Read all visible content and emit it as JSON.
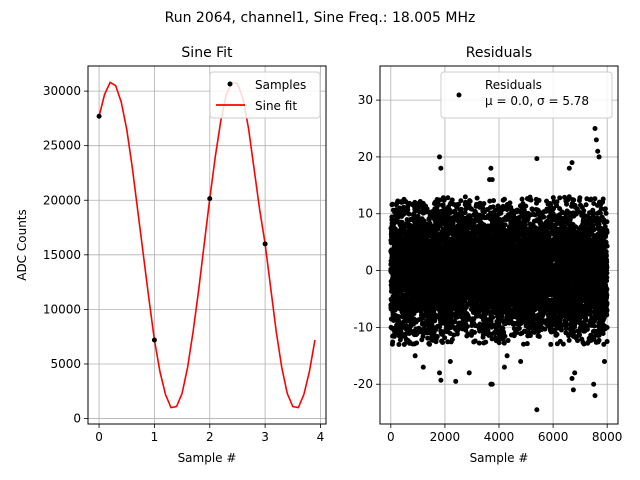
{
  "figure": {
    "suptitle": "Run 2064, channel1, Sine Freq.: 18.005 MHz"
  },
  "colors": {
    "fit_line": "#ff0000",
    "marker": "#000000",
    "grid": "#b0b0b0",
    "axes": "#000000",
    "legend_edge": "#cccccc"
  },
  "chart_data": [
    {
      "type": "line",
      "title": "Sine Fit",
      "xlabel": "Sample #",
      "ylabel": "ADC Counts",
      "xlim": [
        -0.2,
        4.1
      ],
      "ylim": [
        -500,
        32300
      ],
      "xticks": [
        0,
        1,
        2,
        3,
        4
      ],
      "yticks": [
        0,
        5000,
        10000,
        15000,
        20000,
        25000,
        30000
      ],
      "grid": true,
      "legend": {
        "placement": "upper-right",
        "entries": [
          "Samples",
          "Sine fit"
        ]
      },
      "series": [
        {
          "name": "Samples",
          "style": "markers",
          "x": [
            0,
            1,
            2,
            3
          ],
          "y": [
            27700,
            7200,
            20150,
            16000
          ]
        },
        {
          "name": "Sine fit",
          "style": "line",
          "x": [
            0,
            0.1,
            0.2,
            0.3,
            0.4,
            0.5,
            0.6,
            0.7,
            0.8,
            0.9,
            1.0,
            1.1,
            1.2,
            1.3,
            1.4,
            1.5,
            1.6,
            1.7,
            1.8,
            1.9,
            2.0,
            2.1,
            2.2,
            2.3,
            2.4,
            2.5,
            2.6,
            2.7,
            2.8,
            2.9,
            3.0,
            3.1,
            3.2,
            3.3,
            3.4,
            3.5,
            3.6,
            3.7,
            3.8,
            3.9
          ],
          "y": [
            27700,
            29700,
            30800,
            30500,
            29000,
            26500,
            23000,
            19000,
            15000,
            11000,
            7200,
            4300,
            2200,
            1000,
            1100,
            2300,
            4700,
            8000,
            11800,
            16000,
            20150,
            24000,
            27300,
            29700,
            30800,
            30700,
            29300,
            26600,
            22900,
            19200,
            16000,
            12000,
            8000,
            4700,
            2300,
            1100,
            1000,
            2200,
            4300,
            7200
          ]
        }
      ]
    },
    {
      "type": "scatter",
      "title": "Residuals",
      "xlabel": "Sample #",
      "ylabel": "",
      "xlim": [
        -400,
        8400
      ],
      "ylim": [
        -27,
        36
      ],
      "xticks": [
        0,
        2000,
        4000,
        6000,
        8000
      ],
      "yticks": [
        -20,
        -10,
        0,
        10,
        20,
        30
      ],
      "grid": true,
      "legend": {
        "placement": "upper-right",
        "entries": [
          "Residuals",
          "μ = 0.0, σ = 5.78"
        ]
      },
      "mean": 0.0,
      "sigma": 5.78,
      "n_points": 8000,
      "series": [
        {
          "name": "Residuals",
          "style": "markers",
          "x": [
            1800,
            1850,
            3650,
            3700,
            3750,
            5400,
            6600,
            6700,
            7550,
            7600,
            7650,
            7700,
            2400,
            2900,
            4200,
            3700,
            4800,
            6800,
            7900,
            1200,
            300,
            1800,
            1850,
            3750,
            5400,
            6700,
            6750,
            7500,
            7550,
            4300,
            2200,
            900,
            500
          ],
          "y": [
            20,
            18,
            16,
            18,
            16,
            19.7,
            18,
            19,
            25,
            23,
            21,
            20,
            -19.5,
            -18,
            -17,
            -20,
            -16,
            -18,
            -16,
            -17,
            -13,
            -18,
            -19.3,
            -20,
            -24.5,
            -19,
            -21,
            -20,
            -22,
            -15,
            -16,
            -15,
            -13
          ]
        }
      ]
    }
  ]
}
